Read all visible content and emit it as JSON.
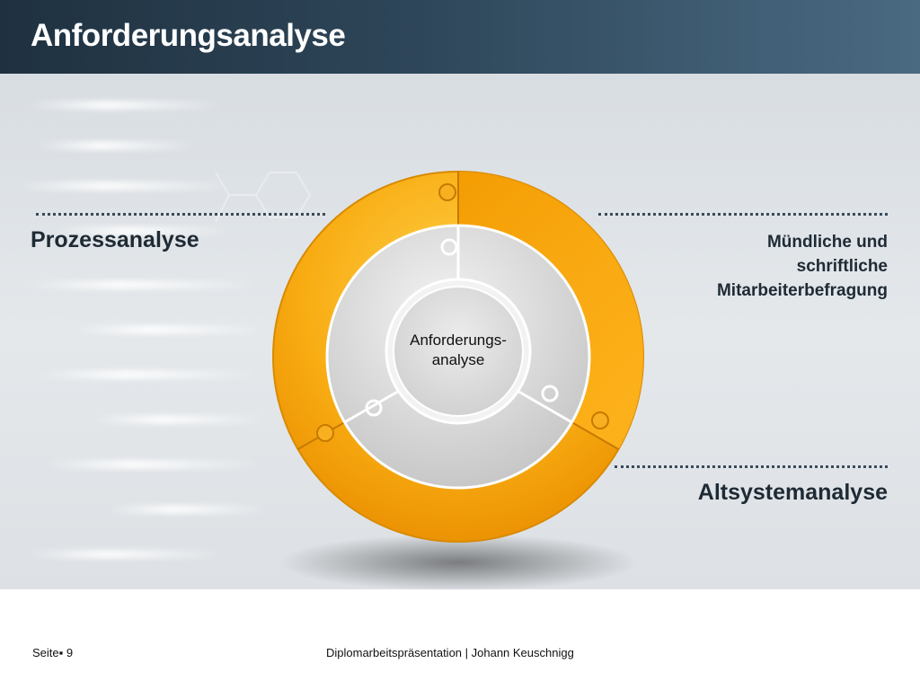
{
  "slide": {
    "title": "Anforderungsanalyse"
  },
  "diagram": {
    "center": {
      "line1": "Anforderungs-",
      "line2": "analyse"
    },
    "labels": {
      "left": "Prozessanalyse",
      "right_top": [
        "Mündliche und",
        "schriftliche",
        "Mitarbeiterbefragung"
      ],
      "right_bottom": "Altsystemanalyse"
    },
    "colors": {
      "ring_orange": "#f6a100",
      "ring_light": "#ffc433",
      "inner_grey": "#d9d9d9",
      "header_dark": "#2e4659"
    }
  },
  "footer": {
    "page_label": "Seite",
    "page_number": "9",
    "center_text": "Diplomarbeitspräsentation | Johann Keuschnigg"
  }
}
